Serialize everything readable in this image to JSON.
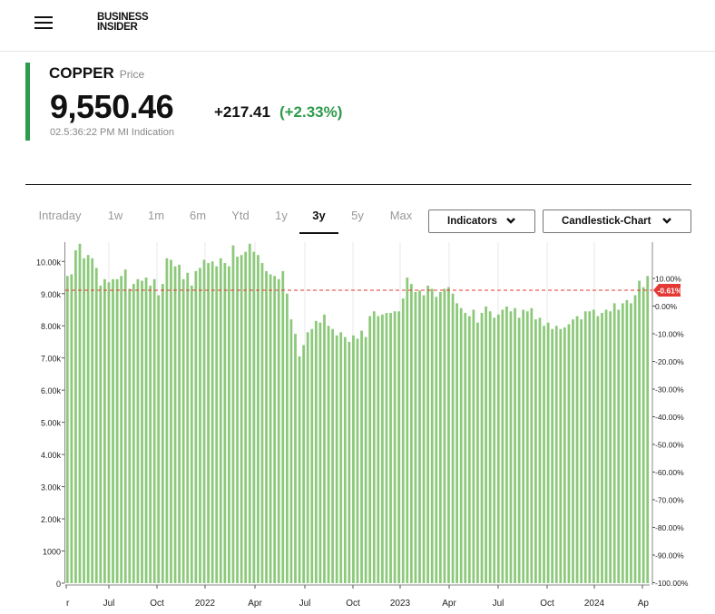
{
  "header": {
    "menu_icon": "hamburger-menu-icon",
    "logo_line1": "BUSINESS",
    "logo_line2": "INSIDER"
  },
  "quote": {
    "name": "COPPER",
    "type": "Price",
    "price": "9,550.46",
    "change_abs": "+217.41",
    "change_pct": "(+2.33%)",
    "timestamp": "02.5:36:22 PM",
    "source": "MI Indication",
    "accent_color": "#2e9a4b"
  },
  "range_tabs": [
    "Intraday",
    "1w",
    "1m",
    "6m",
    "Ytd",
    "1y",
    "3y",
    "5y",
    "Max"
  ],
  "active_tab": "3y",
  "dropdowns": {
    "indicators": "Indicators",
    "chart_type": "Candlestick-Chart",
    "icon": "chevron-down-icon"
  },
  "chart_data": {
    "type": "bar",
    "color": "#8cc97a",
    "reference_line": {
      "label": "-0.61%",
      "color": "#e53935"
    },
    "left_axis": {
      "ticks": [
        "0",
        "1000",
        "2.00k",
        "3.00k",
        "4.00k",
        "5.00k",
        "6.00k",
        "7.00k",
        "8.00k",
        "9.00k",
        "10.00k"
      ],
      "range": [
        0,
        10600
      ]
    },
    "right_axis": {
      "ticks": [
        "-100.00%",
        "-90.00%",
        "-80.00%",
        "-70.00%",
        "-60.00%",
        "-50.00%",
        "-40.00%",
        "-30.00%",
        "-20.00%",
        "-10.00%",
        "0.00%",
        "10.00%"
      ]
    },
    "x_labels": [
      "r",
      "Jul",
      "Oct",
      "2022",
      "Apr",
      "Jul",
      "Oct",
      "2023",
      "Apr",
      "Jul",
      "Oct",
      "2024",
      "Ap"
    ],
    "values": [
      9550,
      9600,
      10350,
      10550,
      10100,
      10200,
      10100,
      9800,
      9250,
      9450,
      9350,
      9450,
      9450,
      9550,
      9750,
      9150,
      9300,
      9450,
      9400,
      9500,
      9250,
      9450,
      8950,
      9300,
      10100,
      10050,
      9850,
      9900,
      9450,
      9650,
      9250,
      9700,
      9800,
      10050,
      9950,
      10000,
      9850,
      10100,
      9950,
      9850,
      10500,
      10150,
      10200,
      10300,
      10550,
      10300,
      10200,
      9950,
      9700,
      9600,
      9550,
      9450,
      9700,
      9000,
      8200,
      7750,
      7050,
      7400,
      7800,
      7900,
      8150,
      8100,
      8350,
      8000,
      7900,
      7700,
      7800,
      7650,
      7500,
      7700,
      7600,
      7850,
      7650,
      8300,
      8450,
      8300,
      8350,
      8400,
      8400,
      8450,
      8450,
      8850,
      9500,
      9300,
      9050,
      9100,
      8950,
      9250,
      9150,
      8900,
      9050,
      9150,
      9200,
      9000,
      8700,
      8550,
      8400,
      8300,
      8500,
      8100,
      8400,
      8600,
      8450,
      8250,
      8350,
      8500,
      8600,
      8450,
      8550,
      8250,
      8500,
      8450,
      8550,
      8200,
      8250,
      8000,
      8100,
      7900,
      8000,
      7900,
      7950,
      8050,
      8200,
      8300,
      8200,
      8450,
      8450,
      8500,
      8300,
      8400,
      8500,
      8450,
      8700,
      8500,
      8700,
      8800,
      8700,
      8950,
      9400,
      9200,
      9550
    ]
  }
}
